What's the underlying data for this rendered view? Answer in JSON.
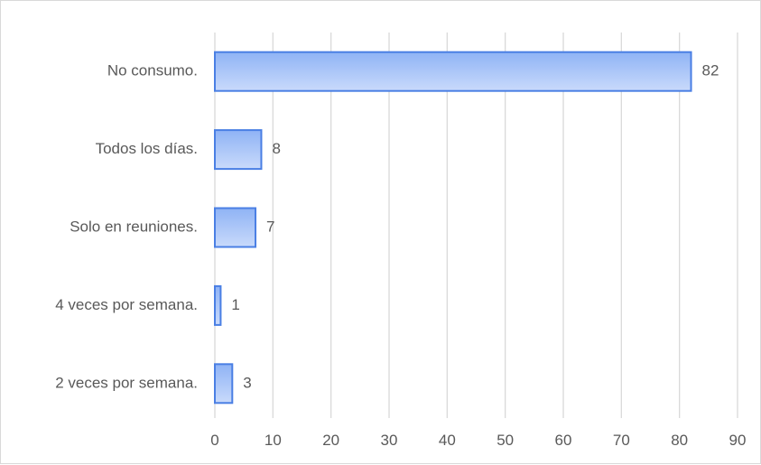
{
  "chart_data": {
    "type": "bar",
    "orientation": "horizontal",
    "categories": [
      "No consumo.",
      "Todos los días.",
      "Solo en reuniones.",
      "4 veces por semana.",
      "2 veces por semana."
    ],
    "values": [
      82,
      8,
      7,
      1,
      3
    ],
    "data_labels": [
      "82",
      "8",
      "7",
      "1",
      "3"
    ],
    "xlim": [
      0,
      90
    ],
    "x_ticks": [
      0,
      10,
      20,
      30,
      40,
      50,
      60,
      70,
      80,
      90
    ],
    "x_tick_labels": [
      "0",
      "10",
      "20",
      "30",
      "40",
      "50",
      "60",
      "70",
      "80",
      "90"
    ],
    "grid": true,
    "legend": "none",
    "colors": {
      "bar_fill_top": "#8fb3f5",
      "bar_fill_bottom": "#c9dafb",
      "bar_stroke": "#4a7fe4",
      "gridline": "#d9d9d9",
      "text": "#595959"
    }
  }
}
